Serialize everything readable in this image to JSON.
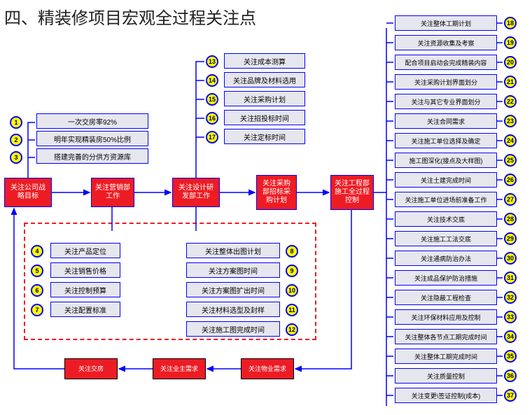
{
  "title": "四、精装修项目宏观全过程关注点",
  "left": {
    "b1": "一次交房率92%",
    "b2": "明年实现精装房50%比例",
    "b3": "搭建完善的分供方资源库"
  },
  "main": {
    "m1": "关注公司战略目标",
    "m2": "关注营销部工作",
    "m3": "关注设计研发部工作",
    "m4": "关注采购部招标采购计划",
    "m5": "关注工程部施工全过程控制"
  },
  "group4": {
    "g1": "关注产品定位",
    "g2": "关注销售价格",
    "g3": "关注控制预算",
    "g4": "关注配置标准"
  },
  "group3": {
    "g1": "关注成本测算",
    "g2": "关注品牌及材料选用",
    "g3": "关注采购计划",
    "g4": "关注招投标时间",
    "g5": "关注定标时间"
  },
  "group8": {
    "g1": "关注整体出图计划",
    "g2": "关注方案图时间",
    "g3": "关注方案图扩出时间",
    "g4": "关注材料选型及封样",
    "g5": "关注施工图完成时间"
  },
  "right": {
    "r1": "关注整体工期计划",
    "r2": "关注资源收集及考察",
    "r3": "配合项目启动会完成精装内容",
    "r4": "关注采购计划界面划分",
    "r5": "关注与其它专业界面划分",
    "r6": "关注合同需求",
    "r7": "关注施工单位选择及确定",
    "r8": "施工图深化(接点及大样图)",
    "r9": "关注土建完成时间",
    "r10": "关注施工单位进场前准备工作",
    "r11": "关注技术交底",
    "r12": "关注施工工法交底",
    "r13": "关注通病防治办法",
    "r14": "关注成品保护防治措施",
    "r15": "关注隐蔽工程检查",
    "r16": "关注环保材料应用及控制",
    "r17": "关注整体各节点工期完成时间",
    "r18": "关注整体工期完成时间",
    "r19": "关注质量控制",
    "r20": "关注变更\\签证控制(成本)"
  },
  "bottom": {
    "b1": "关注交房",
    "b2": "关注业主需求",
    "b3": "关注物业需求"
  },
  "colors": {
    "red": "#ed1c24",
    "blue": "#0000ff",
    "yellow": "#ffff00",
    "grey": "#e6e6ef"
  }
}
